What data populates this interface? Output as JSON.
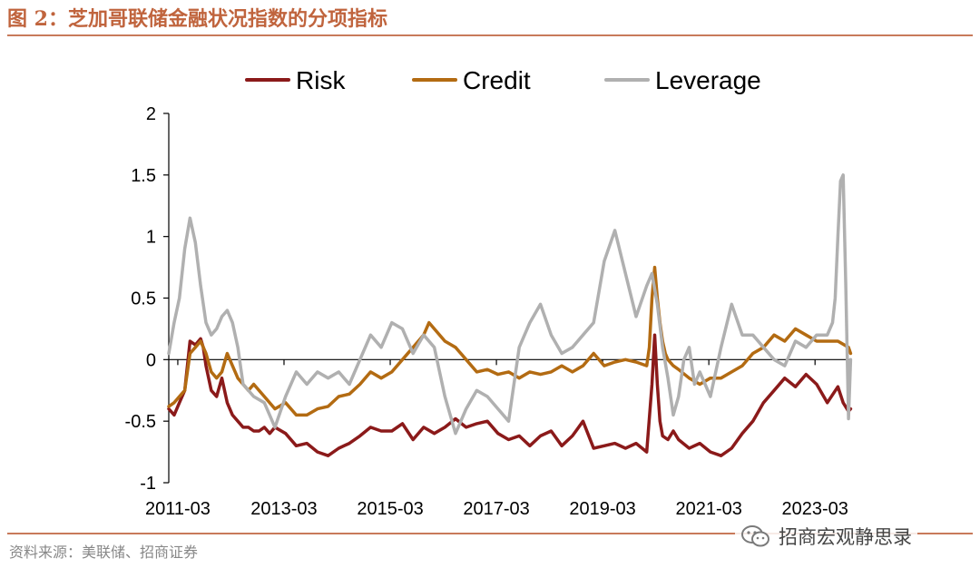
{
  "header": {
    "title": "图 2：芝加哥联储金融状况指数的分项指标"
  },
  "footer": {
    "source": "资料来源：美联储、招商证券",
    "watermark_text": "招商宏观静思录",
    "watermark_icon": "wechat-icon"
  },
  "colors": {
    "accent": "#c0643d",
    "risk": "#8b1a1a",
    "credit": "#b36b12",
    "leverage": "#b0b0b0",
    "axis": "#000000"
  },
  "chart_data": {
    "type": "line",
    "title": "",
    "xlabel": "",
    "ylabel": "",
    "ylim": [
      -1,
      2
    ],
    "yticks": [
      -1,
      -0.5,
      0,
      0.5,
      1,
      1.5,
      2
    ],
    "ytick_labels": [
      "-1",
      "-0.5",
      "0",
      "0.5",
      "1",
      "1.5",
      "2"
    ],
    "xlim": [
      2011.0,
      2023.85
    ],
    "xticks": [
      2011.17,
      2013.17,
      2015.17,
      2017.17,
      2019.17,
      2021.17,
      2023.17
    ],
    "xtick_labels": [
      "2011-03",
      "2013-03",
      "2015-03",
      "2017-03",
      "2019-03",
      "2021-03",
      "2023-03"
    ],
    "legend_position": "top",
    "series": [
      {
        "name": "Risk",
        "color": "#8b1a1a",
        "x": [
          2011.0,
          2011.1,
          2011.2,
          2011.3,
          2011.4,
          2011.5,
          2011.6,
          2011.65,
          2011.7,
          2011.8,
          2011.9,
          2012.0,
          2012.1,
          2012.2,
          2012.3,
          2012.4,
          2012.5,
          2012.6,
          2012.7,
          2012.8,
          2012.9,
          2013.0,
          2013.2,
          2013.4,
          2013.6,
          2013.8,
          2014.0,
          2014.2,
          2014.4,
          2014.6,
          2014.8,
          2015.0,
          2015.2,
          2015.4,
          2015.6,
          2015.8,
          2016.0,
          2016.2,
          2016.4,
          2016.6,
          2016.8,
          2017.0,
          2017.2,
          2017.4,
          2017.6,
          2017.8,
          2018.0,
          2018.2,
          2018.4,
          2018.6,
          2018.8,
          2019.0,
          2019.2,
          2019.4,
          2019.6,
          2019.8,
          2020.0,
          2020.1,
          2020.15,
          2020.2,
          2020.25,
          2020.3,
          2020.4,
          2020.5,
          2020.6,
          2020.8,
          2021.0,
          2021.2,
          2021.4,
          2021.6,
          2021.8,
          2022.0,
          2022.2,
          2022.4,
          2022.6,
          2022.8,
          2023.0,
          2023.2,
          2023.4,
          2023.6,
          2023.7,
          2023.8,
          2023.84
        ],
        "values": [
          -0.4,
          -0.45,
          -0.35,
          -0.25,
          0.15,
          0.12,
          0.17,
          0.1,
          -0.05,
          -0.25,
          -0.3,
          -0.15,
          -0.35,
          -0.45,
          -0.5,
          -0.55,
          -0.55,
          -0.58,
          -0.58,
          -0.55,
          -0.6,
          -0.55,
          -0.6,
          -0.7,
          -0.68,
          -0.75,
          -0.78,
          -0.72,
          -0.68,
          -0.62,
          -0.55,
          -0.58,
          -0.58,
          -0.52,
          -0.65,
          -0.55,
          -0.6,
          -0.55,
          -0.48,
          -0.55,
          -0.52,
          -0.5,
          -0.6,
          -0.65,
          -0.62,
          -0.7,
          -0.62,
          -0.58,
          -0.7,
          -0.62,
          -0.5,
          -0.72,
          -0.7,
          -0.68,
          -0.72,
          -0.68,
          -0.75,
          -0.2,
          0.2,
          -0.2,
          -0.5,
          -0.62,
          -0.65,
          -0.58,
          -0.65,
          -0.72,
          -0.68,
          -0.75,
          -0.78,
          -0.72,
          -0.6,
          -0.5,
          -0.35,
          -0.25,
          -0.15,
          -0.22,
          -0.12,
          -0.2,
          -0.35,
          -0.22,
          -0.35,
          -0.42,
          -0.4
        ]
      },
      {
        "name": "Credit",
        "color": "#b36b12",
        "x": [
          2011.0,
          2011.1,
          2011.2,
          2011.3,
          2011.4,
          2011.5,
          2011.6,
          2011.7,
          2011.8,
          2011.9,
          2012.0,
          2012.1,
          2012.2,
          2012.3,
          2012.4,
          2012.5,
          2012.6,
          2012.8,
          2013.0,
          2013.2,
          2013.4,
          2013.6,
          2013.8,
          2014.0,
          2014.2,
          2014.4,
          2014.6,
          2014.8,
          2015.0,
          2015.2,
          2015.4,
          2015.6,
          2015.8,
          2015.9,
          2016.0,
          2016.2,
          2016.4,
          2016.6,
          2016.8,
          2017.0,
          2017.2,
          2017.4,
          2017.6,
          2017.8,
          2018.0,
          2018.2,
          2018.4,
          2018.6,
          2018.8,
          2019.0,
          2019.2,
          2019.4,
          2019.6,
          2019.8,
          2020.0,
          2020.05,
          2020.1,
          2020.15,
          2020.2,
          2020.25,
          2020.3,
          2020.35,
          2020.4,
          2020.5,
          2020.6,
          2020.8,
          2021.0,
          2021.2,
          2021.4,
          2021.6,
          2021.8,
          2022.0,
          2022.2,
          2022.4,
          2022.6,
          2022.8,
          2023.0,
          2023.2,
          2023.4,
          2023.6,
          2023.8,
          2023.84
        ],
        "values": [
          -0.38,
          -0.35,
          -0.3,
          -0.25,
          0.05,
          0.1,
          0.15,
          0.05,
          -0.1,
          -0.15,
          -0.1,
          0.05,
          -0.05,
          -0.15,
          -0.2,
          -0.25,
          -0.2,
          -0.3,
          -0.4,
          -0.35,
          -0.45,
          -0.45,
          -0.4,
          -0.38,
          -0.3,
          -0.28,
          -0.2,
          -0.1,
          -0.15,
          -0.1,
          0.0,
          0.1,
          0.2,
          0.3,
          0.25,
          0.15,
          0.1,
          0.0,
          -0.1,
          -0.08,
          -0.12,
          -0.1,
          -0.15,
          -0.1,
          -0.12,
          -0.1,
          -0.05,
          -0.1,
          -0.05,
          0.05,
          -0.05,
          -0.02,
          0.0,
          -0.02,
          -0.05,
          0.1,
          0.5,
          0.75,
          0.5,
          0.3,
          0.15,
          0.05,
          0.0,
          -0.05,
          -0.08,
          -0.15,
          -0.2,
          -0.15,
          -0.15,
          -0.1,
          -0.05,
          0.05,
          0.1,
          0.2,
          0.15,
          0.25,
          0.2,
          0.15,
          0.15,
          0.15,
          0.1,
          0.05
        ]
      },
      {
        "name": "Leverage",
        "color": "#b0b0b0",
        "x": [
          2011.0,
          2011.1,
          2011.2,
          2011.3,
          2011.4,
          2011.5,
          2011.6,
          2011.7,
          2011.8,
          2011.9,
          2012.0,
          2012.1,
          2012.2,
          2012.3,
          2012.4,
          2012.6,
          2012.8,
          2013.0,
          2013.2,
          2013.4,
          2013.6,
          2013.8,
          2014.0,
          2014.2,
          2014.4,
          2014.6,
          2014.8,
          2015.0,
          2015.2,
          2015.4,
          2015.6,
          2015.8,
          2016.0,
          2016.2,
          2016.4,
          2016.6,
          2016.8,
          2017.0,
          2017.2,
          2017.4,
          2017.6,
          2017.8,
          2018.0,
          2018.2,
          2018.4,
          2018.6,
          2018.8,
          2019.0,
          2019.2,
          2019.4,
          2019.6,
          2019.8,
          2020.0,
          2020.1,
          2020.2,
          2020.3,
          2020.4,
          2020.5,
          2020.6,
          2020.7,
          2020.8,
          2020.9,
          2021.0,
          2021.1,
          2021.2,
          2021.4,
          2021.6,
          2021.8,
          2022.0,
          2022.2,
          2022.4,
          2022.6,
          2022.8,
          2023.0,
          2023.2,
          2023.4,
          2023.5,
          2023.55,
          2023.6,
          2023.65,
          2023.7,
          2023.75,
          2023.8,
          2023.84
        ],
        "values": [
          0.05,
          0.3,
          0.5,
          0.9,
          1.15,
          0.95,
          0.6,
          0.3,
          0.2,
          0.25,
          0.35,
          0.4,
          0.3,
          0.1,
          -0.2,
          -0.3,
          -0.35,
          -0.55,
          -0.3,
          -0.1,
          -0.2,
          -0.1,
          -0.15,
          -0.1,
          -0.2,
          0.0,
          0.2,
          0.1,
          0.3,
          0.25,
          0.05,
          0.2,
          0.1,
          -0.3,
          -0.6,
          -0.4,
          -0.25,
          -0.3,
          -0.4,
          -0.5,
          0.1,
          0.3,
          0.45,
          0.2,
          0.05,
          0.1,
          0.2,
          0.3,
          0.8,
          1.05,
          0.7,
          0.35,
          0.6,
          0.7,
          0.45,
          0.1,
          -0.15,
          -0.45,
          -0.3,
          0.0,
          0.1,
          -0.2,
          -0.1,
          -0.2,
          -0.3,
          0.1,
          0.45,
          0.2,
          0.2,
          0.1,
          0.0,
          -0.05,
          0.15,
          0.1,
          0.2,
          0.2,
          0.3,
          0.5,
          1.0,
          1.45,
          1.5,
          0.6,
          -0.48,
          0.0
        ]
      }
    ]
  }
}
